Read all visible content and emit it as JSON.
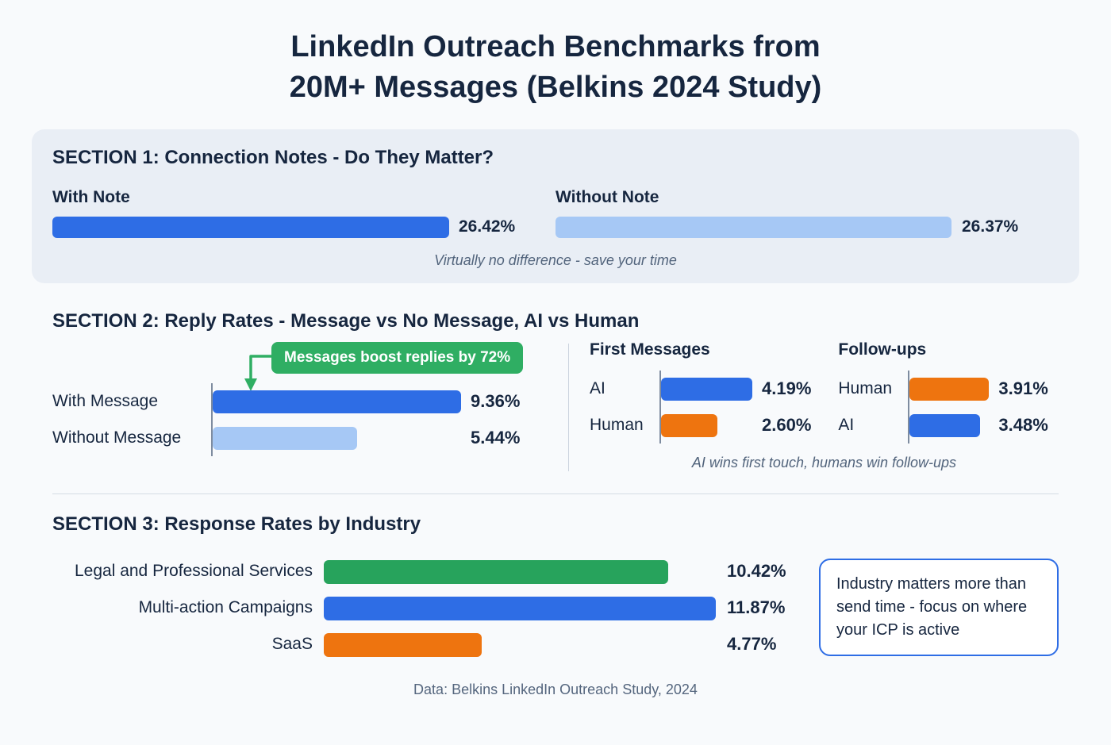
{
  "title": {
    "line1": "LinkedIn Outreach Benchmarks from",
    "line2": "20M+ Messages (Belkins 2024 Study)"
  },
  "section1": {
    "heading": "SECTION 1: Connection Notes - Do They Matter?",
    "bars": [
      {
        "label": "With Note",
        "value": "26.42%",
        "pct": 26.42
      },
      {
        "label": "Without Note",
        "value": "26.37%",
        "pct": 26.37
      }
    ],
    "note": "Virtually no difference - save your time"
  },
  "section2": {
    "heading": "SECTION 2: Reply Rates - Message vs No Message, AI vs Human",
    "badge": "Messages boost replies by 72%",
    "left": {
      "rows": [
        {
          "label": "With Message",
          "value": "9.36%",
          "pct": 9.36
        },
        {
          "label": "Without Message",
          "value": "5.44%",
          "pct": 5.44
        }
      ]
    },
    "first_messages": {
      "heading": "First Messages",
      "rows": [
        {
          "label": "AI",
          "value": "4.19%",
          "pct": 4.19
        },
        {
          "label": "Human",
          "value": "2.60%",
          "pct": 2.6
        }
      ]
    },
    "follow_ups": {
      "heading": "Follow-ups",
      "rows": [
        {
          "label": "Human",
          "value": "3.91%",
          "pct": 3.91
        },
        {
          "label": "AI",
          "value": "3.48%",
          "pct": 3.48
        }
      ]
    },
    "note": "AI wins first touch, humans win follow-ups"
  },
  "section3": {
    "heading": "SECTION 3: Response Rates by Industry",
    "rows": [
      {
        "label": "Legal and Professional Services",
        "value": "10.42%",
        "pct": 10.42
      },
      {
        "label": "Multi-action Campaigns",
        "value": "11.87%",
        "pct": 11.87
      },
      {
        "label": "SaaS",
        "value": "4.77%",
        "pct": 4.77
      }
    ],
    "callout": "Industry matters more than send time - focus on where your ICP is active"
  },
  "footer": "Data: Belkins LinkedIn Outreach Study, 2024",
  "colors": {
    "primary_blue": "#2e6de5",
    "light_blue": "#a6c8f5",
    "green": "#27a35c",
    "badge_green": "#2fae63",
    "orange": "#ee740f",
    "navy_text": "#16263f",
    "muted_text": "#52647c",
    "section_bg": "#e9eef5",
    "page_bg": "#f8fafc",
    "callout_border": "#2e6de5"
  },
  "chart_data": [
    {
      "type": "bar",
      "title": "SECTION 1: Connection Notes - Do They Matter?",
      "orientation": "horizontal",
      "unit": "%",
      "categories": [
        "With Note",
        "Without Note"
      ],
      "values": [
        26.42,
        26.37
      ],
      "annotation": "Virtually no difference - save your time"
    },
    {
      "type": "bar",
      "title": "SECTION 2: Reply Rates - Message vs No Message, AI vs Human",
      "orientation": "horizontal",
      "unit": "%",
      "categories": [
        "With Message",
        "Without Message"
      ],
      "values": [
        9.36,
        5.44
      ],
      "annotation": "Messages boost replies by 72%"
    },
    {
      "type": "bar",
      "title": "First Messages",
      "orientation": "horizontal",
      "unit": "%",
      "categories": [
        "AI",
        "Human"
      ],
      "values": [
        4.19,
        2.6
      ],
      "annotation": "AI wins first touch, humans win follow-ups"
    },
    {
      "type": "bar",
      "title": "Follow-ups",
      "orientation": "horizontal",
      "unit": "%",
      "categories": [
        "Human",
        "AI"
      ],
      "values": [
        3.91,
        3.48
      ],
      "annotation": "AI wins first touch, humans win follow-ups"
    },
    {
      "type": "bar",
      "title": "SECTION 3: Response Rates by Industry",
      "orientation": "horizontal",
      "unit": "%",
      "categories": [
        "Legal and Professional Services",
        "Multi-action Campaigns",
        "SaaS"
      ],
      "values": [
        10.42,
        11.87,
        4.77
      ],
      "annotation": "Industry matters more than send time - focus on where your ICP is active"
    }
  ]
}
